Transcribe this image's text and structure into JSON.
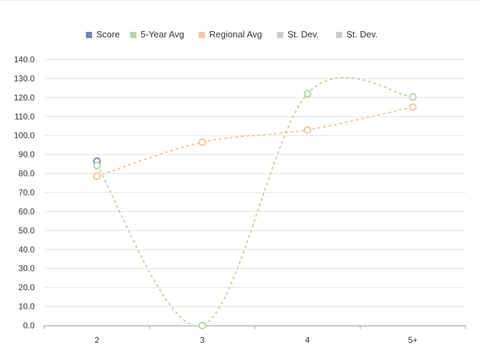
{
  "chart_data": {
    "type": "line",
    "categories": [
      "2",
      "3",
      "4",
      "5+"
    ],
    "ylim": [
      0,
      140
    ],
    "yticks": [
      "0.0",
      "10.0",
      "20.0",
      "30.0",
      "40.0",
      "50.0",
      "60.0",
      "70.0",
      "80.0",
      "90.0",
      "100.0",
      "110.0",
      "120.0",
      "130.0",
      "140.0"
    ],
    "grid": true,
    "legend_position": "top",
    "legend": [
      {
        "label": "Score",
        "color": "#7b7fb5"
      },
      {
        "label": "5-Year Avg",
        "color": "#b9d5a7"
      },
      {
        "label": "Regional Avg",
        "color": "#f4c49c"
      },
      {
        "label": "St. Dev.",
        "color": "#cccccc"
      },
      {
        "label": "St. Dev.",
        "color": "#cccccc"
      }
    ],
    "series": [
      {
        "name": "Score",
        "color": "#7b7fb5",
        "values": [
          86.5,
          null,
          null,
          null
        ],
        "line": false
      },
      {
        "name": "5-Year Avg",
        "color": "#b9d5a7",
        "values": [
          84.2,
          0.0,
          122.0,
          120.3
        ],
        "line": true
      },
      {
        "name": "Regional Avg",
        "color": "#f4c49c",
        "values": [
          78.6,
          96.5,
          103.0,
          115.0
        ],
        "line": true
      }
    ]
  }
}
